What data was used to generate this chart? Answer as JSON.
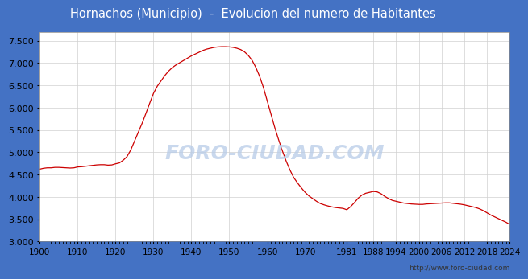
{
  "title": "Hornachos (Municipio)  -  Evolucion del numero de Habitantes",
  "title_bg": "#4472c4",
  "title_color": "white",
  "line_color": "#cc0000",
  "bg_color": "#4472c4",
  "plot_bg": "#ffffff",
  "plot_border_bg": "#e8e8e8",
  "url_text": "http://www.foro-ciudad.com",
  "watermark": "FORO-CIUDAD.COM",
  "xlim": [
    1900,
    2024
  ],
  "ylim": [
    3000,
    7700
  ],
  "yticks": [
    3000,
    3500,
    4000,
    4500,
    5000,
    5500,
    6000,
    6500,
    7000,
    7500
  ],
  "xtick_labels": [
    "1900",
    "1910",
    "1920",
    "1930",
    "1940",
    "1950",
    "1960",
    "1970",
    "1981",
    "1988",
    "1994",
    "2000",
    "2006",
    "2012",
    "2018",
    "2024"
  ],
  "xtick_positions": [
    1900,
    1910,
    1920,
    1930,
    1940,
    1950,
    1960,
    1970,
    1981,
    1988,
    1994,
    2000,
    2006,
    2012,
    2018,
    2024
  ],
  "years": [
    1900,
    1901,
    1902,
    1903,
    1904,
    1905,
    1906,
    1907,
    1908,
    1909,
    1910,
    1911,
    1912,
    1913,
    1914,
    1915,
    1916,
    1917,
    1918,
    1919,
    1920,
    1921,
    1922,
    1923,
    1924,
    1925,
    1926,
    1927,
    1928,
    1929,
    1930,
    1931,
    1932,
    1933,
    1934,
    1935,
    1936,
    1937,
    1938,
    1939,
    1940,
    1941,
    1942,
    1943,
    1944,
    1945,
    1946,
    1947,
    1948,
    1949,
    1950,
    1951,
    1952,
    1953,
    1954,
    1955,
    1956,
    1957,
    1958,
    1959,
    1960,
    1961,
    1962,
    1963,
    1964,
    1965,
    1966,
    1967,
    1968,
    1969,
    1970,
    1971,
    1972,
    1973,
    1974,
    1975,
    1976,
    1977,
    1978,
    1979,
    1980,
    1981,
    1982,
    1983,
    1984,
    1985,
    1986,
    1987,
    1988,
    1989,
    1990,
    1991,
    1992,
    1993,
    1994,
    1995,
    1996,
    1997,
    1998,
    1999,
    2000,
    2001,
    2002,
    2003,
    2004,
    2005,
    2006,
    2007,
    2008,
    2009,
    2010,
    2011,
    2012,
    2013,
    2014,
    2015,
    2016,
    2017,
    2018,
    2019,
    2020,
    2021,
    2022,
    2023,
    2024
  ],
  "population": [
    4620,
    4640,
    4650,
    4650,
    4660,
    4660,
    4655,
    4650,
    4645,
    4650,
    4670,
    4675,
    4685,
    4695,
    4705,
    4715,
    4720,
    4720,
    4710,
    4715,
    4740,
    4760,
    4820,
    4900,
    5050,
    5250,
    5450,
    5650,
    5870,
    6100,
    6320,
    6480,
    6600,
    6720,
    6820,
    6900,
    6960,
    7010,
    7060,
    7110,
    7160,
    7200,
    7240,
    7280,
    7310,
    7330,
    7350,
    7360,
    7365,
    7365,
    7360,
    7350,
    7330,
    7300,
    7250,
    7170,
    7060,
    6900,
    6700,
    6450,
    6150,
    5850,
    5550,
    5280,
    5030,
    4800,
    4600,
    4430,
    4310,
    4200,
    4100,
    4020,
    3960,
    3900,
    3850,
    3820,
    3795,
    3775,
    3760,
    3750,
    3740,
    3710,
    3780,
    3870,
    3970,
    4040,
    4080,
    4100,
    4120,
    4110,
    4070,
    4010,
    3960,
    3920,
    3900,
    3880,
    3860,
    3850,
    3840,
    3835,
    3830,
    3830,
    3840,
    3845,
    3850,
    3855,
    3860,
    3865,
    3865,
    3855,
    3845,
    3835,
    3820,
    3800,
    3780,
    3760,
    3730,
    3690,
    3640,
    3590,
    3550,
    3510,
    3470,
    3430,
    3380
  ]
}
